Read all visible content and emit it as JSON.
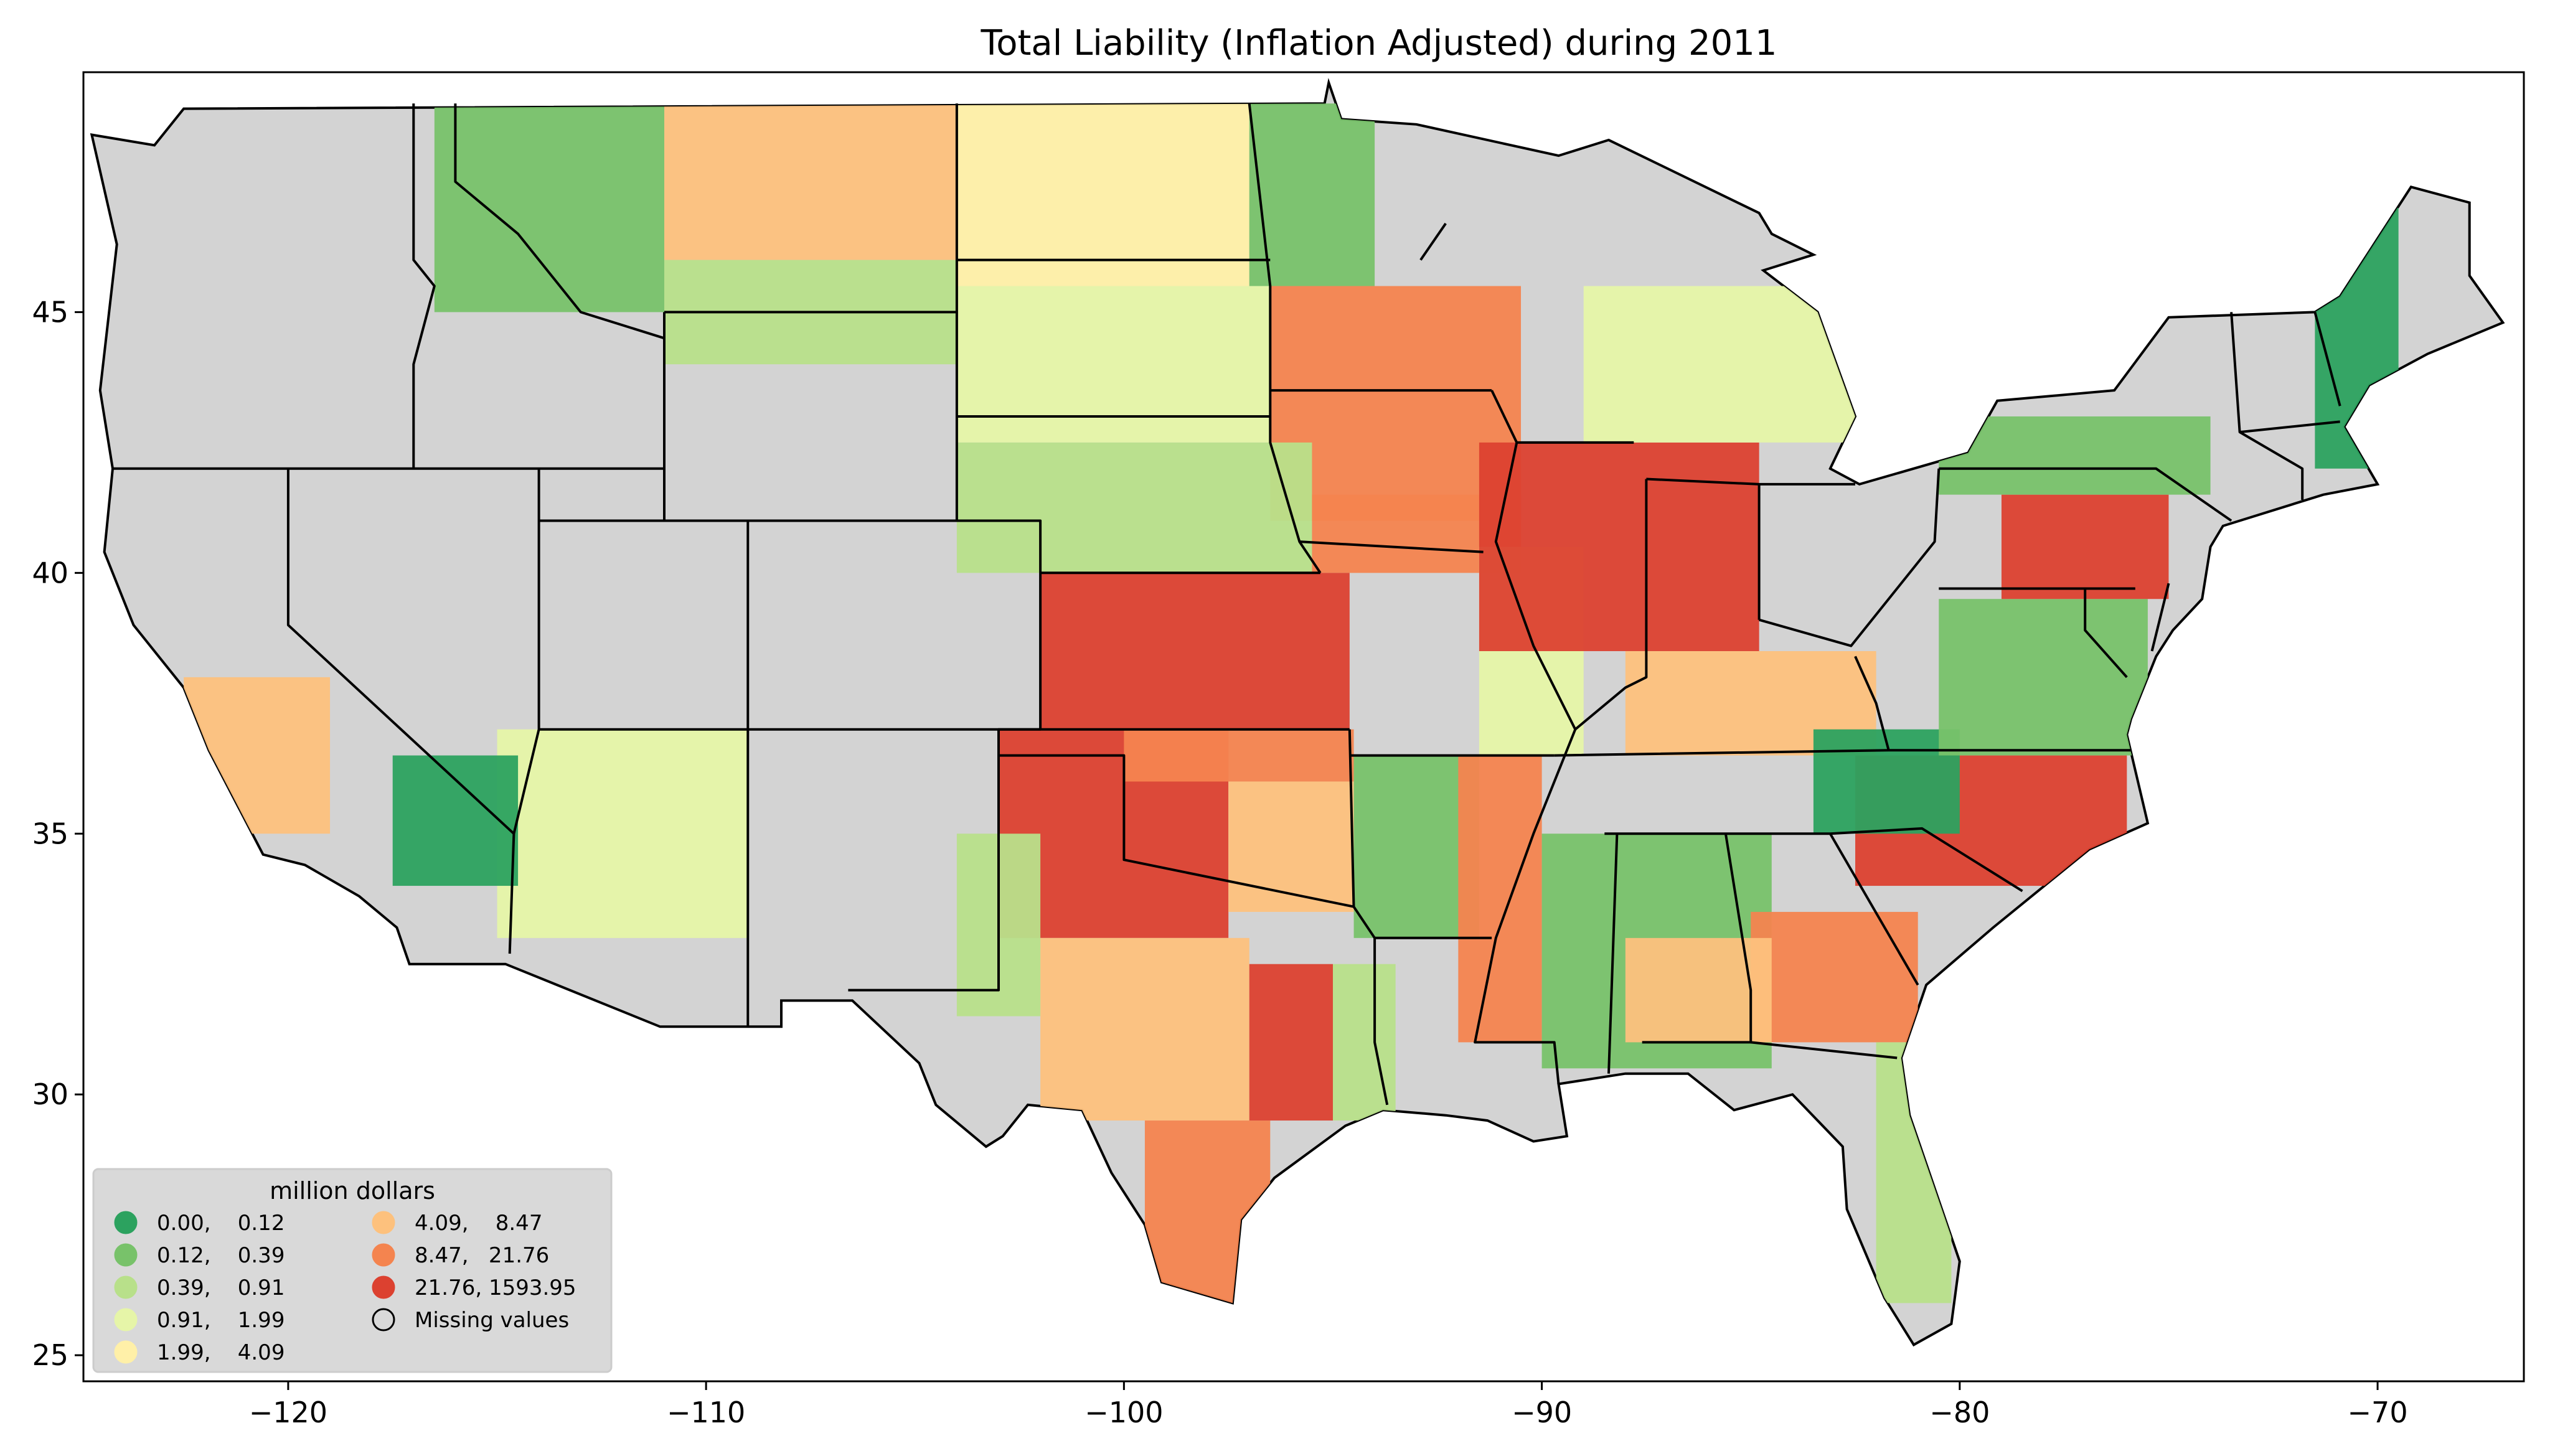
{
  "title": "Total Liability  (Inflation Adjusted) during 2011",
  "axes": {
    "x_ticks": [
      "−120",
      "−110",
      "−100",
      "−90",
      "−80",
      "−70"
    ],
    "y_ticks": [
      "25",
      "30",
      "35",
      "40",
      "45"
    ],
    "x_tick_values": [
      -120,
      -110,
      -100,
      -90,
      -80,
      -70
    ],
    "y_tick_values": [
      25,
      30,
      35,
      40,
      45
    ],
    "xlim": [
      -124.9,
      -66.5
    ],
    "ylim": [
      24.5,
      49.6
    ]
  },
  "colors": {
    "missing": "#d3d3d3",
    "background": "#ffffff",
    "legend_bg": "#d9d9d9"
  },
  "legend": {
    "title": "million dollars",
    "items": [
      {
        "label": "0.00,    0.12",
        "color": "#2ca25f"
      },
      {
        "label": "0.12,    0.39",
        "color": "#78c26a"
      },
      {
        "label": "0.39,    0.91",
        "color": "#b8e08a"
      },
      {
        "label": "0.91,    1.99",
        "color": "#e6f5a8"
      },
      {
        "label": "1.99,    4.09",
        "color": "#fff0a8"
      },
      {
        "label": "4.09,    8.47",
        "color": "#fdc17d"
      },
      {
        "label": "8.47,   21.76",
        "color": "#f4844f"
      },
      {
        "label": "21.76, 1593.95",
        "color": "#dc4130"
      },
      {
        "label": "Missing values",
        "color": "#ffffff",
        "hollow": true
      }
    ]
  }
}
